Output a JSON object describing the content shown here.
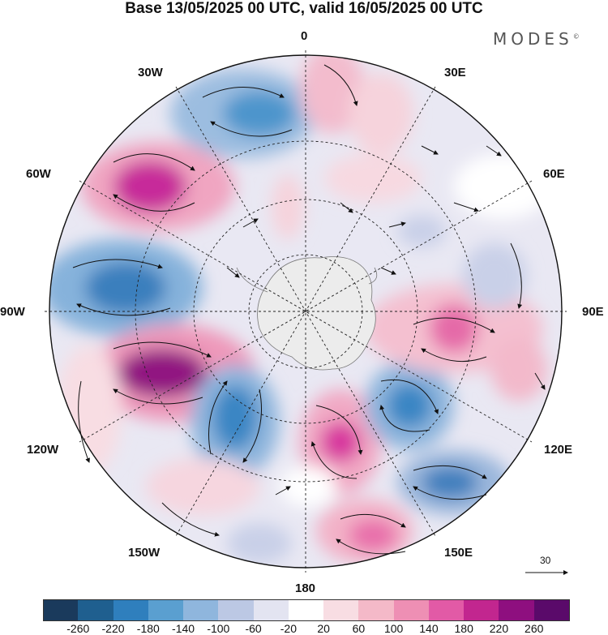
{
  "title": "Base 13/05/2025 00 UTC, valid 16/05/2025 00 UTC",
  "brand": "MODES",
  "brand_mark": "©",
  "longitude_labels": {
    "deg0": "0",
    "deg30e": "30E",
    "deg60e": "60E",
    "deg90e": "90E",
    "deg120e": "120E",
    "deg150e": "150E",
    "deg180": "180",
    "deg150w": "150W",
    "deg120w": "120W",
    "deg90w": "90W",
    "deg60w": "60W",
    "deg30w": "30W"
  },
  "wind_reference_label": "30",
  "colorbar": {
    "ticks": [
      "-260",
      "-220",
      "-180",
      "-140",
      "-100",
      "-60",
      "-20",
      "20",
      "60",
      "100",
      "140",
      "180",
      "220",
      "260"
    ],
    "colors": [
      "#1a3a5c",
      "#1f5f8f",
      "#2f7fbd",
      "#5a9fd0",
      "#8fb6dd",
      "#bcc8e4",
      "#e3e4f1",
      "#ffffff",
      "#f8dde3",
      "#f4b9c8",
      "#ee8fb4",
      "#e25aa6",
      "#c2268f",
      "#8e0f7f",
      "#5a0a6a"
    ]
  },
  "map_data": {
    "projection": "south-polar-stereographic",
    "field": "geopotential height anomaly with wind vectors",
    "anomaly_centers": [
      {
        "lon": "30W",
        "sign": "negative",
        "value": -180
      },
      {
        "lon": "0",
        "sign": "positive",
        "value": 100
      },
      {
        "lon": "60W",
        "sign": "positive",
        "value": 220
      },
      {
        "lon": "90W",
        "sign": "negative",
        "value": -180
      },
      {
        "lon": "110W",
        "sign": "positive",
        "value": 260
      },
      {
        "lon": "150W",
        "sign": "negative",
        "value": -180
      },
      {
        "lon": "170E",
        "sign": "positive",
        "value": 180
      },
      {
        "lon": "140E",
        "sign": "positive",
        "value": 140
      },
      {
        "lon": "120E",
        "sign": "negative",
        "value": -140
      },
      {
        "lon": "100E",
        "sign": "negative",
        "value": -180
      },
      {
        "lon": "90E",
        "sign": "positive",
        "value": 140
      },
      {
        "lon": "70E",
        "sign": "negative",
        "value": -60
      }
    ]
  }
}
